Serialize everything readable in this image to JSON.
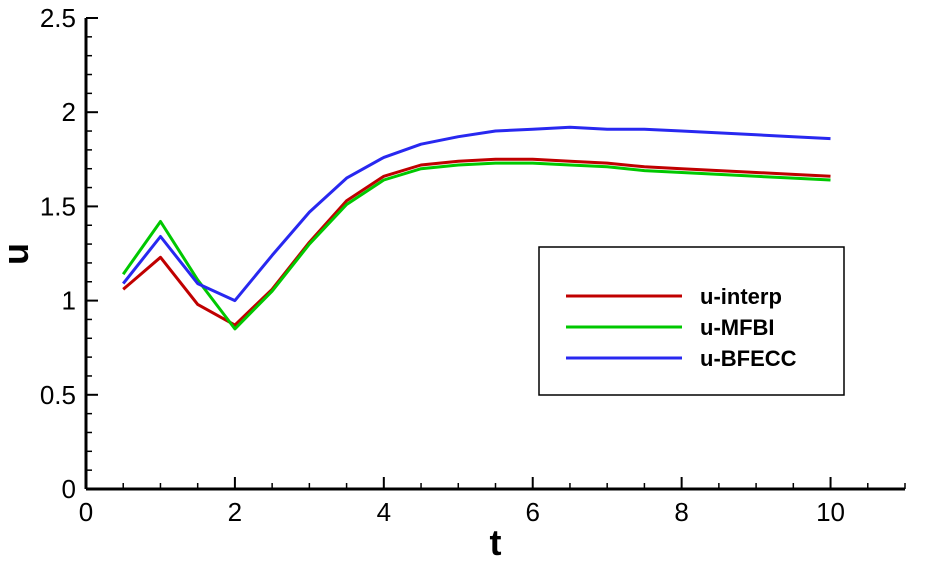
{
  "chart_data": {
    "type": "line",
    "title": "",
    "xlabel": "t",
    "ylabel": "u",
    "xlim": [
      0,
      11
    ],
    "ylim": [
      0,
      2.5
    ],
    "x_ticks": [
      0,
      2,
      4,
      6,
      8,
      10
    ],
    "y_ticks": [
      0,
      0.5,
      1,
      1.5,
      2,
      2.5
    ],
    "x_tick_labels": [
      "0",
      "2",
      "4",
      "6",
      "8",
      "10"
    ],
    "y_tick_labels": [
      "0",
      "0.5",
      "1",
      "1.5",
      "2",
      "2.5"
    ],
    "grid": false,
    "legend_position": "right",
    "series": [
      {
        "name": "u-interp",
        "color": "#c00000",
        "x": [
          0.5,
          1,
          1.5,
          2,
          2.5,
          3,
          3.5,
          4,
          4.5,
          5,
          5.5,
          6,
          6.5,
          7,
          7.5,
          8,
          8.5,
          9,
          9.5,
          10
        ],
        "y": [
          1.06,
          1.23,
          0.98,
          0.87,
          1.06,
          1.31,
          1.53,
          1.66,
          1.72,
          1.74,
          1.75,
          1.75,
          1.74,
          1.73,
          1.71,
          1.7,
          1.69,
          1.68,
          1.67,
          1.66
        ]
      },
      {
        "name": "u-MFBI",
        "color": "#00c800",
        "x": [
          0.5,
          1,
          1.5,
          2,
          2.5,
          3,
          3.5,
          4,
          4.5,
          5,
          5.5,
          6,
          6.5,
          7,
          7.5,
          8,
          8.5,
          9,
          9.5,
          10
        ],
        "y": [
          1.14,
          1.42,
          1.11,
          0.85,
          1.05,
          1.3,
          1.51,
          1.64,
          1.7,
          1.72,
          1.73,
          1.73,
          1.72,
          1.71,
          1.69,
          1.68,
          1.67,
          1.66,
          1.65,
          1.64
        ]
      },
      {
        "name": "u-BFECC",
        "color": "#2828f0",
        "x": [
          0.5,
          1,
          1.5,
          2,
          2.5,
          3,
          3.5,
          4,
          4.5,
          5,
          5.5,
          6,
          6.5,
          7,
          7.5,
          8,
          8.5,
          9,
          9.5,
          10
        ],
        "y": [
          1.09,
          1.34,
          1.09,
          1.0,
          1.24,
          1.47,
          1.65,
          1.76,
          1.83,
          1.87,
          1.9,
          1.91,
          1.92,
          1.91,
          1.91,
          1.9,
          1.89,
          1.88,
          1.87,
          1.86
        ]
      }
    ]
  }
}
